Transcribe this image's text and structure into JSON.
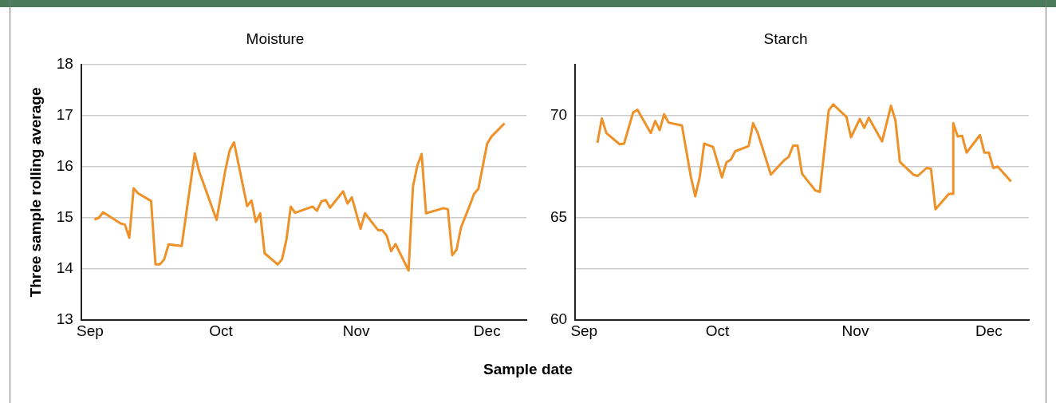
{
  "chart_data": [
    {
      "type": "line",
      "title": "Moisture",
      "ylabel": "Three sample rolling average",
      "xlabel": "Sample date",
      "grid": "y",
      "legend": false,
      "marker": "none",
      "line_style": "solid",
      "xlim": [
        "--08-30",
        "--12-10"
      ],
      "xticks": [
        {
          "value": "--09-01",
          "label": "Sep"
        },
        {
          "value": "--10-01",
          "label": "Oct"
        },
        {
          "value": "--11-01",
          "label": "Nov"
        },
        {
          "value": "--12-01",
          "label": "Dec"
        }
      ],
      "ylim": [
        13,
        18
      ],
      "yticks": [
        13,
        14,
        15,
        16,
        17,
        18
      ],
      "series": [
        {
          "color": "#ee9128",
          "x": [
            "--09-02",
            "--09-03",
            "--09-04",
            "--09-08",
            "--09-09",
            "--09-10",
            "--09-11",
            "--09-12",
            "--09-15",
            "--09-16",
            "--09-17",
            "--09-18",
            "--09-19",
            "--09-22",
            "--09-25",
            "--09-26",
            "--09-30",
            "--10-02",
            "--10-03",
            "--10-04",
            "--10-07",
            "--10-08",
            "--10-09",
            "--10-10",
            "--10-11",
            "--10-14",
            "--10-15",
            "--10-16",
            "--10-17",
            "--10-18",
            "--10-22",
            "--10-23",
            "--10-24",
            "--10-25",
            "--10-26",
            "--10-29",
            "--10-30",
            "--10-31",
            "--11-02",
            "--11-03",
            "--11-06",
            "--11-07",
            "--11-08",
            "--11-09",
            "--11-10",
            "--11-13",
            "--11-14",
            "--11-15",
            "--11-16",
            "--11-17",
            "--11-21",
            "--11-22",
            "--11-23",
            "--11-24",
            "--11-25",
            "--11-27",
            "--11-28",
            "--11-29",
            "--12-01",
            "--12-02",
            "--12-05"
          ],
          "values": [
            14.97,
            15.0,
            15.11,
            14.89,
            14.87,
            14.61,
            15.58,
            15.48,
            15.33,
            14.09,
            14.09,
            14.19,
            14.48,
            14.45,
            16.26,
            15.91,
            14.96,
            15.93,
            16.32,
            16.48,
            15.23,
            15.34,
            14.92,
            15.09,
            14.31,
            14.09,
            14.19,
            14.57,
            15.22,
            15.1,
            15.22,
            15.14,
            15.32,
            15.35,
            15.2,
            15.52,
            15.28,
            15.4,
            14.79,
            15.09,
            14.76,
            14.76,
            14.65,
            14.35,
            14.49,
            13.97,
            15.61,
            16.02,
            16.25,
            15.09,
            15.19,
            15.17,
            14.27,
            14.38,
            14.81,
            15.24,
            15.47,
            15.57,
            16.45,
            16.59,
            16.85
          ]
        }
      ]
    },
    {
      "type": "line",
      "title": "Starch",
      "grid": "y",
      "legend": false,
      "marker": "none",
      "line_style": "solid",
      "xlim": [
        "--08-30",
        "--12-10"
      ],
      "xticks": [
        {
          "value": "--09-01",
          "label": "Sep"
        },
        {
          "value": "--10-01",
          "label": "Oct"
        },
        {
          "value": "--11-01",
          "label": "Nov"
        },
        {
          "value": "--12-01",
          "label": "Dec"
        }
      ],
      "ylim": [
        60,
        72.5
      ],
      "yticks": [
        60,
        {
          "value": 62.5,
          "label": null
        },
        65,
        {
          "value": 67.5,
          "label": null
        },
        70
      ],
      "series": [
        {
          "color": "#ee9128",
          "x": [
            "--09-04",
            "--09-05",
            "--09-06",
            "--09-09",
            "--09-10",
            "--09-12",
            "--09-13",
            "--09-16",
            "--09-17",
            "--09-18",
            "--09-19",
            "--09-20",
            "--09-23",
            "--09-25",
            "--09-26",
            "--09-27",
            "--09-28",
            "--09-30",
            "--10-02",
            "--10-03",
            "--10-04",
            "--10-05",
            "--10-08",
            "--10-09",
            "--10-10",
            "--10-13",
            "--10-16",
            "--10-17",
            "--10-18",
            "--10-19",
            "--10-20",
            "--10-23",
            "--10-24",
            "--10-26",
            "--10-27",
            "--10-30",
            "--10-31",
            "--11-02",
            "--11-03",
            "--11-04",
            "--11-07",
            "--11-09",
            "--11-10",
            "--11-11",
            "--11-14",
            "--11-15",
            "--11-17",
            "--11-18",
            "--11-19",
            "--11-22",
            "--11-23",
            "--11-23",
            "--11-24",
            "--11-25",
            "--11-26",
            "--11-29",
            "--11-30",
            "--12-01",
            "--12-02",
            "--12-03",
            "--12-06"
          ],
          "values": [
            68.67,
            69.86,
            69.15,
            68.6,
            68.63,
            70.14,
            70.29,
            69.15,
            69.74,
            69.29,
            70.07,
            69.66,
            69.52,
            67.02,
            66.06,
            67.0,
            68.63,
            68.47,
            66.98,
            67.71,
            67.85,
            68.26,
            68.51,
            69.63,
            69.18,
            67.12,
            67.82,
            67.98,
            68.53,
            68.53,
            67.16,
            66.34,
            66.27,
            70.25,
            70.55,
            69.93,
            68.94,
            69.84,
            69.4,
            69.9,
            68.74,
            70.48,
            69.77,
            67.74,
            67.12,
            67.05,
            67.44,
            67.4,
            65.42,
            66.17,
            66.17,
            69.63,
            68.98,
            69.01,
            68.19,
            69.05,
            68.19,
            68.19,
            67.44,
            67.51,
            66.78
          ]
        }
      ]
    }
  ]
}
